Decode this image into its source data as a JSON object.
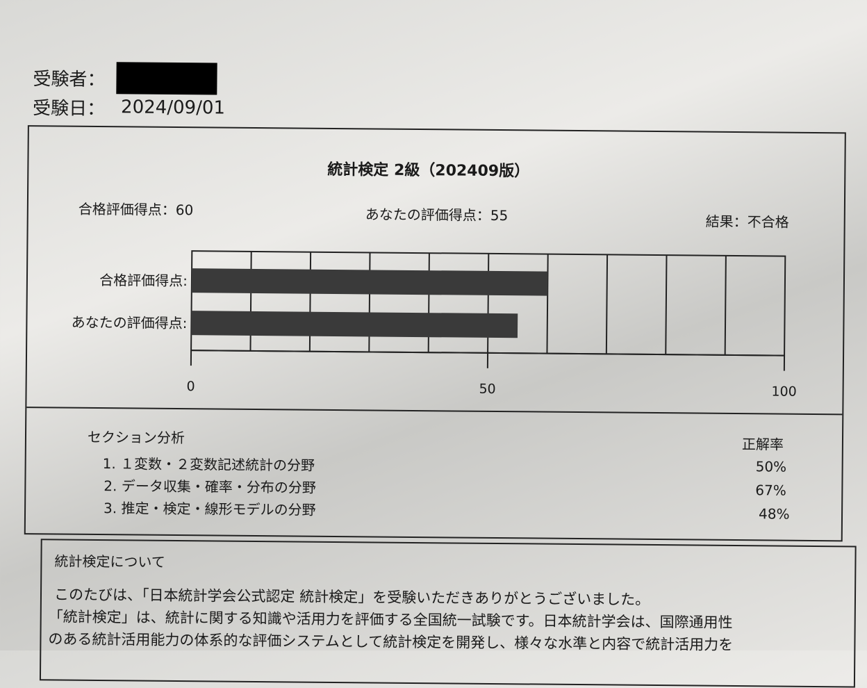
{
  "header": {
    "examinee_label": "受験者：",
    "exam_date_label": "受験日：",
    "exam_date": "2024/09/01"
  },
  "report": {
    "title": "統計検定 2級（202409版）",
    "passing_score_text": "合格評価得点：60",
    "your_score_text": "あなたの評価得点：55",
    "result_text": "結果：不合格"
  },
  "chart_data": {
    "type": "bar",
    "orientation": "horizontal",
    "categories": [
      "合格評価得点:",
      "あなたの評価得点:"
    ],
    "values": [
      60,
      55
    ],
    "xlim": [
      0,
      100
    ],
    "x_ticks": [
      "0",
      "50",
      "100"
    ],
    "grid": true,
    "bar_color": "#3a3a3a"
  },
  "sections": {
    "heading": "セクション分析",
    "rate_heading": "正解率",
    "items": [
      {
        "label": "1. １変数・２変数記述統計の分野",
        "rate": "50%"
      },
      {
        "label": "2. データ収集・確率・分布の分野",
        "rate": "67%"
      },
      {
        "label": "3. 推定・検定・線形モデルの分野",
        "rate": "48%"
      }
    ]
  },
  "about": {
    "heading": "統計検定について",
    "lines": [
      "このたびは、「日本統計学会公式認定 統計検定」を受験いただきありがとうございました。",
      "「統計検定」は、統計に関する知識や活用力を評価する全国統一試験です。日本統計学会は、国際通用性",
      "のある統計活用能力の体系的な評価システムとして統計検定を開発し、様々な水準と内容で統計活用力を"
    ]
  }
}
